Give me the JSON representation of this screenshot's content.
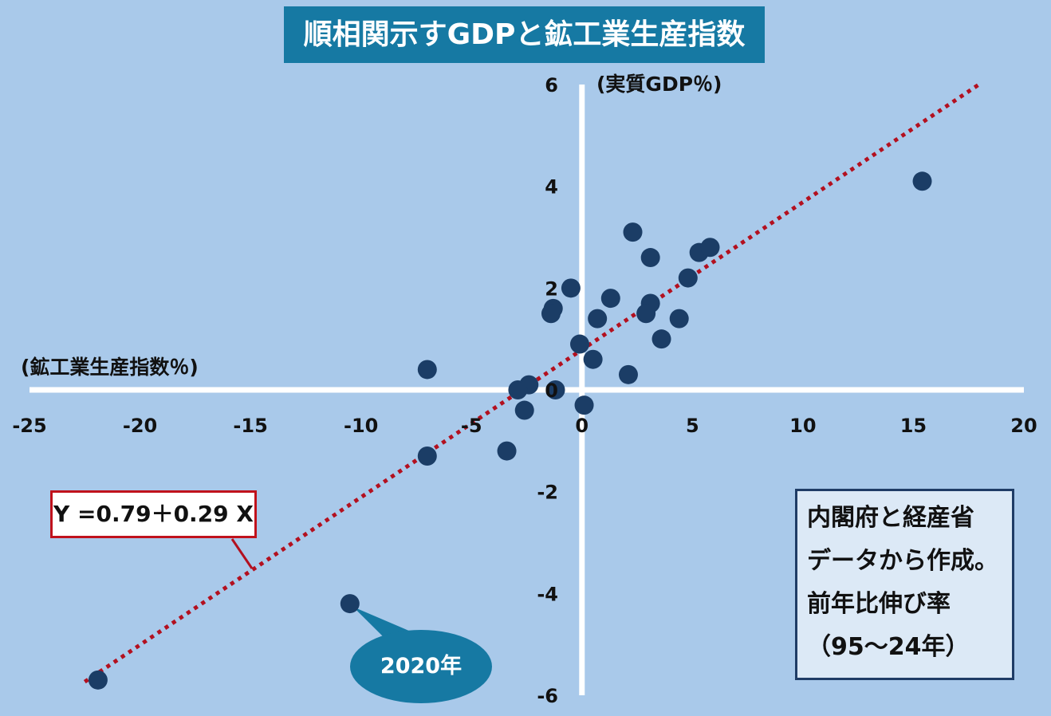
{
  "title": "順相関示すGDPと鉱工業生産指数",
  "y_axis_label": "(実質GDP％)",
  "x_axis_label": "(鉱工業生産指数％)",
  "equation": "Y =0.79＋0.29 X",
  "note": {
    "lines": [
      "内閣府と経産省",
      "データから作成。",
      "前年比伸び率",
      "（95〜24年）"
    ]
  },
  "callout": {
    "label": "2020年"
  },
  "colors": {
    "background": "#a9c9ea",
    "title_bg": "#1679a3",
    "point": "#1b3d66",
    "trendline": "#b3101f",
    "callout": "#1679a3",
    "axis": "#ffffff"
  },
  "chart_data": {
    "type": "scatter",
    "title": "順相関示すGDPと鉱工業生産指数",
    "xlabel": "(鉱工業生産指数％)",
    "ylabel": "(実質GDP％)",
    "xlim": [
      -25,
      20
    ],
    "ylim": [
      -6,
      6
    ],
    "x_ticks": [
      "-25",
      "-20",
      "-15",
      "-10",
      "-5",
      "0",
      "5",
      "10",
      "15",
      "20"
    ],
    "y_ticks": [
      "6",
      "4",
      "2",
      "0",
      "-2",
      "-4",
      "-6"
    ],
    "trendline": {
      "intercept": 0.79,
      "slope": 0.29,
      "style": "dotted"
    },
    "points": [
      {
        "x": 15.4,
        "y": 4.1
      },
      {
        "x": 2.3,
        "y": 3.1
      },
      {
        "x": 3.1,
        "y": 2.6
      },
      {
        "x": 5.3,
        "y": 2.7
      },
      {
        "x": 5.8,
        "y": 2.8
      },
      {
        "x": 4.8,
        "y": 2.2
      },
      {
        "x": -0.5,
        "y": 2.0
      },
      {
        "x": 1.3,
        "y": 1.8
      },
      {
        "x": 3.1,
        "y": 1.7
      },
      {
        "x": 2.9,
        "y": 1.5
      },
      {
        "x": -1.3,
        "y": 1.6
      },
      {
        "x": -1.4,
        "y": 1.5
      },
      {
        "x": 0.7,
        "y": 1.4
      },
      {
        "x": 4.4,
        "y": 1.4
      },
      {
        "x": 3.6,
        "y": 1.0
      },
      {
        "x": -0.1,
        "y": 0.9
      },
      {
        "x": 0.5,
        "y": 0.6
      },
      {
        "x": 2.1,
        "y": 0.3
      },
      {
        "x": -7.0,
        "y": 0.4
      },
      {
        "x": -2.4,
        "y": 0.1
      },
      {
        "x": -1.2,
        "y": 0.0
      },
      {
        "x": -2.9,
        "y": 0.0
      },
      {
        "x": 0.1,
        "y": -0.3
      },
      {
        "x": -2.6,
        "y": -0.4
      },
      {
        "x": -3.4,
        "y": -1.2
      },
      {
        "x": -7.0,
        "y": -1.3
      },
      {
        "x": -10.5,
        "y": -4.2,
        "label": "2020年"
      },
      {
        "x": -21.9,
        "y": -5.7
      }
    ],
    "grid": false,
    "legend": "none"
  }
}
